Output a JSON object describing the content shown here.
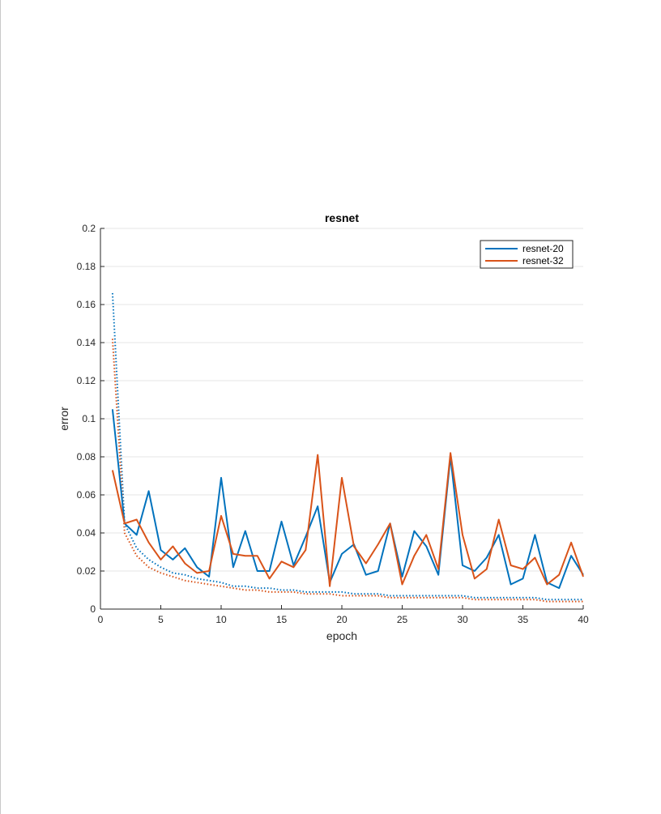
{
  "colors": {
    "resnet-20": "#0072BD",
    "resnet-32": "#D95319",
    "grid": "#e6e6e6",
    "axis": "#262626"
  },
  "chart_data": {
    "type": "line",
    "title": "resnet",
    "xlabel": "epoch",
    "ylabel": "error",
    "xlim": [
      0,
      40
    ],
    "ylim": [
      0,
      0.2
    ],
    "xticks": [
      0,
      5,
      10,
      15,
      20,
      25,
      30,
      35,
      40
    ],
    "yticks": [
      0,
      0.02,
      0.04,
      0.06,
      0.08,
      0.1,
      0.12,
      0.14,
      0.16,
      0.18,
      0.2
    ],
    "grid": "y-major",
    "legend": {
      "placement": "top-right",
      "entries": [
        "resnet-20",
        "resnet-32"
      ]
    },
    "x": [
      1,
      2,
      3,
      4,
      5,
      6,
      7,
      8,
      9,
      10,
      11,
      12,
      13,
      14,
      15,
      16,
      17,
      18,
      19,
      20,
      21,
      22,
      23,
      24,
      25,
      26,
      27,
      28,
      29,
      30,
      31,
      32,
      33,
      34,
      35,
      36,
      37,
      38,
      39,
      40
    ],
    "series": [
      {
        "name": "resnet-20",
        "style": "solid",
        "values": [
          0.105,
          0.045,
          0.039,
          0.062,
          0.031,
          0.026,
          0.032,
          0.022,
          0.017,
          0.069,
          0.022,
          0.041,
          0.02,
          0.02,
          0.046,
          0.023,
          0.038,
          0.054,
          0.014,
          0.029,
          0.034,
          0.018,
          0.02,
          0.045,
          0.017,
          0.041,
          0.033,
          0.018,
          0.08,
          0.023,
          0.02,
          0.027,
          0.039,
          0.013,
          0.016,
          0.039,
          0.014,
          0.011,
          0.028,
          0.018
        ]
      },
      {
        "name": "resnet-32",
        "style": "solid",
        "values": [
          0.073,
          0.045,
          0.047,
          0.035,
          0.026,
          0.033,
          0.024,
          0.019,
          0.02,
          0.049,
          0.029,
          0.028,
          0.028,
          0.016,
          0.025,
          0.022,
          0.031,
          0.081,
          0.012,
          0.069,
          0.033,
          0.024,
          0.034,
          0.045,
          0.013,
          0.028,
          0.039,
          0.021,
          0.082,
          0.039,
          0.016,
          0.021,
          0.047,
          0.023,
          0.021,
          0.027,
          0.013,
          0.018,
          0.035,
          0.017
        ]
      },
      {
        "name": "resnet-20",
        "style": "dotted",
        "values": [
          0.166,
          0.045,
          0.032,
          0.026,
          0.022,
          0.019,
          0.018,
          0.016,
          0.015,
          0.014,
          0.012,
          0.012,
          0.011,
          0.011,
          0.01,
          0.01,
          0.009,
          0.009,
          0.009,
          0.009,
          0.008,
          0.008,
          0.008,
          0.007,
          0.007,
          0.007,
          0.007,
          0.007,
          0.007,
          0.007,
          0.006,
          0.006,
          0.006,
          0.006,
          0.006,
          0.006,
          0.005,
          0.005,
          0.005,
          0.005
        ]
      },
      {
        "name": "resnet-32",
        "style": "dotted",
        "values": [
          0.142,
          0.04,
          0.028,
          0.022,
          0.019,
          0.017,
          0.015,
          0.014,
          0.013,
          0.012,
          0.011,
          0.01,
          0.01,
          0.009,
          0.009,
          0.009,
          0.008,
          0.008,
          0.008,
          0.007,
          0.007,
          0.007,
          0.007,
          0.006,
          0.006,
          0.006,
          0.006,
          0.006,
          0.006,
          0.006,
          0.005,
          0.005,
          0.005,
          0.005,
          0.005,
          0.005,
          0.004,
          0.004,
          0.004,
          0.004
        ]
      }
    ]
  }
}
